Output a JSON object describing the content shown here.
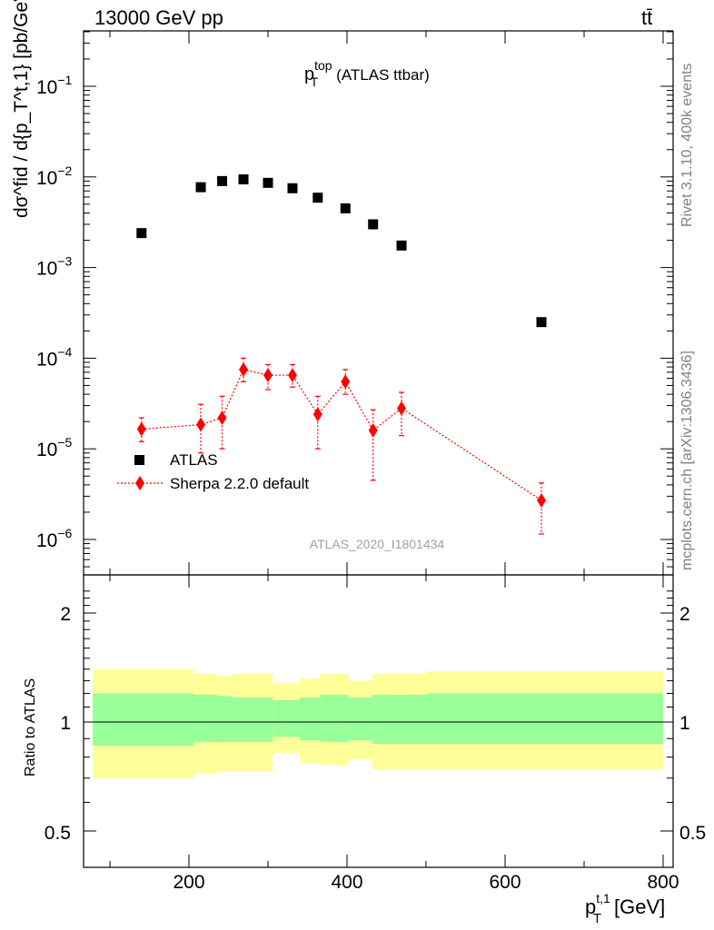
{
  "header": {
    "left": "13000 GeV pp",
    "right": "tt̄"
  },
  "plot_title": {
    "main": "p",
    "sub": "T",
    "sup": "top",
    "rest": "(ATLAS ttbar)"
  },
  "side_labels": {
    "rivet": "Rivet 3.1.10,  400k events",
    "mcplots": "mcplots.cern.ch [arXiv:1306.3436]"
  },
  "watermark": "ATLAS_2020_I1801434",
  "x_axis": {
    "label_main": "p",
    "label_sub": "T",
    "label_sup": "t,1",
    "label_unit": "[GeV]",
    "ticks": [
      "200",
      "400",
      "600",
      "800"
    ]
  },
  "y_axis_top": {
    "label": "dσ^fid / d{p_T^t,1} [pb/GeV]",
    "ticks": [
      {
        "base": "10",
        "exp": "−1"
      },
      {
        "base": "10",
        "exp": "−2"
      },
      {
        "base": "10",
        "exp": "−3"
      },
      {
        "base": "10",
        "exp": "−4"
      },
      {
        "base": "10",
        "exp": "−5"
      },
      {
        "base": "10",
        "exp": "−6"
      }
    ]
  },
  "y_axis_ratio": {
    "label": "Ratio to ATLAS",
    "ticks": [
      "2",
      "1",
      "0.5"
    ]
  },
  "legend": {
    "atlas": "ATLAS",
    "sherpa": "Sherpa 2.2.0 default"
  },
  "colors": {
    "data": "#000000",
    "mc": "#ff0000",
    "band_inner": "#99ff99",
    "band_outer": "#ffff99"
  },
  "chart_data": {
    "type": "scatter",
    "xlim": [
      70,
      800
    ],
    "ylim_top": [
      4e-07,
      0.4
    ],
    "ylim_ratio": [
      0.4,
      2.4
    ],
    "y_scale": "log",
    "series": [
      {
        "name": "ATLAS",
        "x": [
          140,
          215,
          242,
          269,
          300,
          331,
          363,
          398,
          433,
          469,
          646
        ],
        "y": [
          0.0024,
          0.0077,
          0.009,
          0.0094,
          0.0086,
          0.0075,
          0.0059,
          0.0045,
          0.003,
          0.00175,
          0.00025
        ]
      },
      {
        "name": "Sherpa 2.2.0 default",
        "x": [
          140,
          215,
          242,
          269,
          300,
          331,
          363,
          398,
          433,
          469,
          646
        ],
        "y": [
          1.65e-05,
          1.85e-05,
          2.2e-05,
          7.5e-05,
          6.5e-05,
          6.5e-05,
          2.4e-05,
          5.5e-05,
          1.6e-05,
          2.8e-05,
          2.7e-06
        ],
        "y_low": [
          1.2e-05,
          9e-06,
          1e-05,
          5.5e-05,
          4.5e-05,
          4.8e-05,
          1e-05,
          4e-05,
          4.5e-06,
          1.4e-05,
          1.15e-06
        ],
        "y_high": [
          2.2e-05,
          3.1e-05,
          3.8e-05,
          0.0001,
          8.5e-05,
          8.5e-05,
          3.8e-05,
          7.5e-05,
          2.7e-05,
          4.2e-05,
          4.2e-06
        ]
      }
    ],
    "ratio_bands": {
      "edges": [
        70,
        85,
        206,
        236,
        254,
        306,
        340,
        366,
        402,
        432,
        500,
        800
      ],
      "inner_low": [
        0.86,
        0.86,
        0.88,
        0.88,
        0.88,
        0.91,
        0.89,
        0.88,
        0.89,
        0.87,
        0.87
      ],
      "inner_high": [
        1.2,
        1.2,
        1.19,
        1.18,
        1.17,
        1.15,
        1.17,
        1.19,
        1.17,
        1.19,
        1.2
      ],
      "outer_low": [
        0.7,
        0.7,
        0.72,
        0.73,
        0.73,
        0.82,
        0.77,
        0.76,
        0.79,
        0.74,
        0.74
      ],
      "outer_high": [
        1.4,
        1.4,
        1.36,
        1.34,
        1.36,
        1.28,
        1.32,
        1.36,
        1.3,
        1.36,
        1.38
      ]
    }
  }
}
